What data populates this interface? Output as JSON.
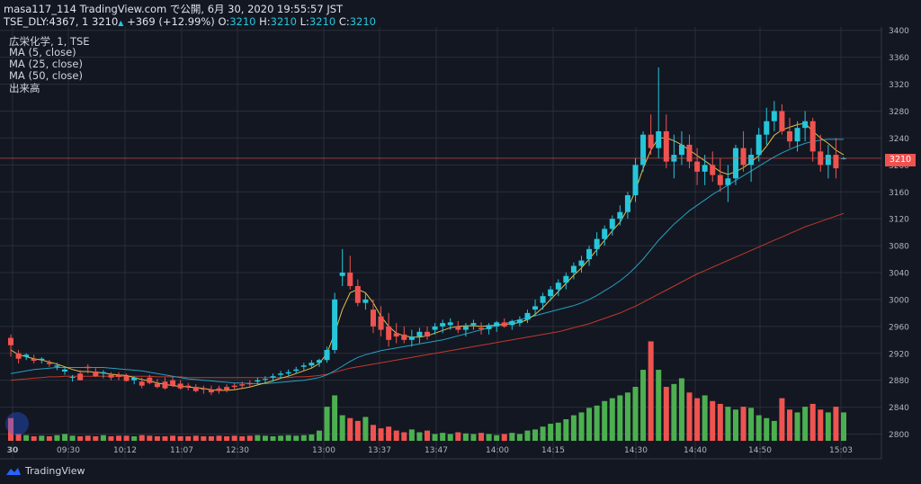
{
  "header": {
    "line1": "masa117_114 TradingView.com で公開, 6月 30, 2020 19:55:57 JST",
    "symbol": "TSE_DLY:4367, 1",
    "last": "3210",
    "change": "+369 (+12.99%)",
    "o_label": "O:",
    "o": "3210",
    "h_label": "H:",
    "h": "3210",
    "l_label": "L:",
    "l": "3210",
    "c_label": "C:",
    "c": "3210"
  },
  "legend": {
    "title": "広栄化学, 1, TSE",
    "ma5": "MA (5, close)",
    "ma25": "MA (25, close)",
    "ma50": "MA (50, close)",
    "volume": "出来高"
  },
  "brand": {
    "name": "TradingView"
  },
  "price_tag": "3210",
  "colors": {
    "background": "#131722",
    "up": "#26c6da",
    "down": "#ef5350",
    "vol_up": "#4caf50",
    "vol_down": "#ef5350",
    "ma5": "#e2c047",
    "ma25": "#26a0c0",
    "ma50": "#c0392b"
  },
  "chart_data": {
    "type": "candlestick",
    "title": "",
    "y_axis_ticks": [
      "3400",
      "3360",
      "3320",
      "3280",
      "3240",
      "3200",
      "3160",
      "3120",
      "3080",
      "3040",
      "3000",
      "2960",
      "2920",
      "2880",
      "2840",
      "2800"
    ],
    "x_axis_ticks": [
      "30",
      "09:30",
      "10:12",
      "11:07",
      "12:30",
      "13:00",
      "13:37",
      "13:47",
      "14:00",
      "14:15",
      "14:30",
      "14:40",
      "14:50",
      "15:03"
    ],
    "ylim": [
      2790,
      3405
    ],
    "last_price": 3210,
    "grid": true,
    "ohlc": [
      [
        2943,
        2948,
        2915,
        2932
      ],
      [
        2920,
        2925,
        2905,
        2912
      ],
      [
        2915,
        2920,
        2910,
        2918
      ],
      [
        2912,
        2918,
        2905,
        2909
      ],
      [
        2910,
        2914,
        2905,
        2912
      ],
      [
        2906,
        2910,
        2900,
        2904
      ],
      [
        2900,
        2906,
        2895,
        2902
      ],
      [
        2893,
        2900,
        2888,
        2896
      ],
      [
        2884,
        2888,
        2878,
        2885
      ],
      [
        2890,
        2895,
        2880,
        2880
      ],
      [
        2900,
        2904,
        2890,
        2898
      ],
      [
        2893,
        2898,
        2885,
        2886
      ],
      [
        2890,
        2895,
        2883,
        2892
      ],
      [
        2888,
        2892,
        2880,
        2884
      ],
      [
        2888,
        2892,
        2880,
        2885
      ],
      [
        2886,
        2890,
        2878,
        2879
      ],
      [
        2880,
        2886,
        2874,
        2884
      ],
      [
        2878,
        2884,
        2868,
        2872
      ],
      [
        2884,
        2888,
        2874,
        2876
      ],
      [
        2875,
        2882,
        2868,
        2870
      ],
      [
        2878,
        2884,
        2866,
        2868
      ],
      [
        2880,
        2885,
        2870,
        2872
      ],
      [
        2875,
        2880,
        2866,
        2868
      ],
      [
        2872,
        2876,
        2865,
        2870
      ],
      [
        2870,
        2874,
        2862,
        2864
      ],
      [
        2868,
        2872,
        2860,
        2866
      ],
      [
        2866,
        2872,
        2858,
        2862
      ],
      [
        2868,
        2872,
        2860,
        2864
      ],
      [
        2870,
        2874,
        2862,
        2866
      ],
      [
        2872,
        2876,
        2866,
        2870
      ],
      [
        2874,
        2878,
        2868,
        2872
      ],
      [
        2876,
        2880,
        2870,
        2874
      ],
      [
        2878,
        2884,
        2872,
        2880
      ],
      [
        2882,
        2886,
        2876,
        2882
      ],
      [
        2884,
        2890,
        2878,
        2886
      ],
      [
        2888,
        2894,
        2882,
        2890
      ],
      [
        2890,
        2896,
        2886,
        2892
      ],
      [
        2894,
        2900,
        2890,
        2896
      ],
      [
        2900,
        2906,
        2895,
        2902
      ],
      [
        2902,
        2910,
        2898,
        2906
      ],
      [
        2906,
        2912,
        2900,
        2910
      ],
      [
        2910,
        2930,
        2906,
        2925
      ],
      [
        2925,
        3010,
        2920,
        3000
      ],
      [
        3035,
        3075,
        3020,
        3040
      ],
      [
        3040,
        3065,
        3015,
        3020
      ],
      [
        3020,
        3030,
        2990,
        2995
      ],
      [
        2995,
        3010,
        2985,
        3000
      ],
      [
        2985,
        3000,
        2950,
        2960
      ],
      [
        2975,
        2990,
        2945,
        2955
      ],
      [
        2960,
        2980,
        2930,
        2940
      ],
      [
        2950,
        2965,
        2935,
        2945
      ],
      [
        2948,
        2960,
        2935,
        2940
      ],
      [
        2940,
        2955,
        2930,
        2945
      ],
      [
        2945,
        2958,
        2935,
        2952
      ],
      [
        2952,
        2960,
        2940,
        2945
      ],
      [
        2955,
        2965,
        2948,
        2960
      ],
      [
        2960,
        2970,
        2950,
        2965
      ],
      [
        2962,
        2972,
        2955,
        2966
      ],
      [
        2960,
        2968,
        2950,
        2955
      ],
      [
        2955,
        2965,
        2945,
        2960
      ],
      [
        2962,
        2970,
        2955,
        2965
      ],
      [
        2958,
        2966,
        2948,
        2956
      ],
      [
        2956,
        2965,
        2948,
        2962
      ],
      [
        2960,
        2968,
        2952,
        2966
      ],
      [
        2966,
        2972,
        2958,
        2960
      ],
      [
        2962,
        2970,
        2955,
        2968
      ],
      [
        2965,
        2975,
        2960,
        2970
      ],
      [
        2970,
        2985,
        2965,
        2980
      ],
      [
        2985,
        3000,
        2975,
        2990
      ],
      [
        2995,
        3010,
        2985,
        3005
      ],
      [
        3005,
        3020,
        2998,
        3015
      ],
      [
        3015,
        3030,
        3005,
        3025
      ],
      [
        3025,
        3040,
        3015,
        3035
      ],
      [
        3040,
        3055,
        3030,
        3050
      ],
      [
        3050,
        3065,
        3040,
        3058
      ],
      [
        3060,
        3080,
        3050,
        3075
      ],
      [
        3075,
        3100,
        3065,
        3090
      ],
      [
        3090,
        3110,
        3080,
        3105
      ],
      [
        3105,
        3125,
        3095,
        3120
      ],
      [
        3120,
        3140,
        3110,
        3130
      ],
      [
        3130,
        3160,
        3120,
        3155
      ],
      [
        3155,
        3210,
        3145,
        3200
      ],
      [
        3200,
        3250,
        3190,
        3245
      ],
      [
        3245,
        3275,
        3215,
        3225
      ],
      [
        3225,
        3345,
        3210,
        3250
      ],
      [
        3250,
        3275,
        3195,
        3205
      ],
      [
        3205,
        3245,
        3180,
        3215
      ],
      [
        3215,
        3250,
        3200,
        3230
      ],
      [
        3230,
        3245,
        3195,
        3205
      ],
      [
        3205,
        3225,
        3170,
        3190
      ],
      [
        3190,
        3215,
        3170,
        3200
      ],
      [
        3200,
        3220,
        3175,
        3185
      ],
      [
        3185,
        3210,
        3160,
        3170
      ],
      [
        3170,
        3200,
        3145,
        3180
      ],
      [
        3180,
        3230,
        3170,
        3225
      ],
      [
        3225,
        3250,
        3190,
        3200
      ],
      [
        3200,
        3225,
        3175,
        3215
      ],
      [
        3215,
        3255,
        3205,
        3245
      ],
      [
        3245,
        3285,
        3230,
        3265
      ],
      [
        3265,
        3295,
        3250,
        3280
      ],
      [
        3280,
        3290,
        3245,
        3250
      ],
      [
        3250,
        3270,
        3225,
        3235
      ],
      [
        3235,
        3265,
        3220,
        3255
      ],
      [
        3255,
        3280,
        3235,
        3265
      ],
      [
        3265,
        3270,
        3205,
        3220
      ],
      [
        3220,
        3245,
        3190,
        3200
      ],
      [
        3200,
        3230,
        3180,
        3215
      ],
      [
        3215,
        3240,
        3180,
        3195
      ],
      [
        3210,
        3212,
        3208,
        3210
      ]
    ],
    "ma5": [
      2925,
      2918,
      2915,
      2912,
      2910,
      2907,
      2904,
      2900,
      2896,
      2893,
      2893,
      2892,
      2891,
      2889,
      2888,
      2887,
      2884,
      2881,
      2879,
      2876,
      2874,
      2872,
      2871,
      2870,
      2869,
      2868,
      2866,
      2865,
      2865,
      2866,
      2868,
      2870,
      2873,
      2876,
      2879,
      2883,
      2886,
      2890,
      2894,
      2898,
      2905,
      2920,
      2950,
      2985,
      3010,
      3015,
      3010,
      2995,
      2975,
      2960,
      2950,
      2946,
      2944,
      2944,
      2946,
      2950,
      2954,
      2958,
      2960,
      2961,
      2961,
      2960,
      2961,
      2962,
      2963,
      2964,
      2966,
      2970,
      2978,
      2988,
      3000,
      3012,
      3024,
      3036,
      3047,
      3060,
      3074,
      3088,
      3102,
      3115,
      3135,
      3162,
      3195,
      3222,
      3240,
      3240,
      3236,
      3230,
      3222,
      3214,
      3206,
      3198,
      3190,
      3186,
      3190,
      3196,
      3204,
      3214,
      3228,
      3244,
      3252,
      3256,
      3260,
      3262,
      3250,
      3240,
      3232,
      3222,
      3215
    ],
    "ma25": [
      2890,
      2892,
      2894,
      2896,
      2897,
      2898,
      2899,
      2899,
      2899,
      2899,
      2899,
      2899,
      2899,
      2898,
      2897,
      2896,
      2895,
      2894,
      2892,
      2890,
      2888,
      2886,
      2884,
      2882,
      2881,
      2880,
      2879,
      2878,
      2877,
      2876,
      2876,
      2875,
      2875,
      2875,
      2876,
      2877,
      2878,
      2879,
      2880,
      2882,
      2884,
      2888,
      2894,
      2901,
      2908,
      2914,
      2918,
      2921,
      2924,
      2926,
      2928,
      2930,
      2932,
      2934,
      2936,
      2938,
      2940,
      2943,
      2946,
      2949,
      2952,
      2955,
      2958,
      2961,
      2964,
      2967,
      2970,
      2973,
      2976,
      2979,
      2982,
      2985,
      2988,
      2991,
      2995,
      3000,
      3006,
      3013,
      3020,
      3028,
      3037,
      3048,
      3060,
      3074,
      3088,
      3100,
      3112,
      3122,
      3132,
      3140,
      3148,
      3156,
      3163,
      3170,
      3177,
      3184,
      3191,
      3198,
      3205,
      3212,
      3218,
      3223,
      3228,
      3232,
      3235,
      3237,
      3238,
      3238,
      3238
    ],
    "ma50": [
      2880,
      2881,
      2882,
      2883,
      2884,
      2885,
      2885,
      2886,
      2886,
      2886,
      2886,
      2886,
      2886,
      2886,
      2886,
      2886,
      2886,
      2886,
      2886,
      2885,
      2885,
      2885,
      2885,
      2884,
      2884,
      2884,
      2884,
      2884,
      2884,
      2884,
      2884,
      2884,
      2884,
      2884,
      2884,
      2884,
      2884,
      2885,
      2885,
      2886,
      2887,
      2889,
      2892,
      2895,
      2898,
      2900,
      2902,
      2904,
      2906,
      2908,
      2910,
      2912,
      2914,
      2916,
      2918,
      2920,
      2922,
      2924,
      2926,
      2928,
      2930,
      2932,
      2934,
      2936,
      2938,
      2940,
      2942,
      2944,
      2946,
      2948,
      2950,
      2952,
      2955,
      2958,
      2961,
      2964,
      2968,
      2972,
      2976,
      2980,
      2985,
      2990,
      2996,
      3002,
      3008,
      3014,
      3020,
      3026,
      3032,
      3038,
      3043,
      3048,
      3053,
      3058,
      3063,
      3068,
      3073,
      3078,
      3083,
      3088,
      3093,
      3098,
      3103,
      3108,
      3112,
      3116,
      3120,
      3124,
      3128
    ],
    "volume": [
      40,
      12,
      10,
      8,
      9,
      8,
      10,
      12,
      9,
      8,
      9,
      8,
      10,
      8,
      9,
      9,
      8,
      10,
      9,
      8,
      8,
      9,
      8,
      8,
      9,
      8,
      8,
      9,
      8,
      9,
      8,
      9,
      10,
      9,
      8,
      9,
      10,
      9,
      10,
      11,
      18,
      60,
      80,
      45,
      40,
      35,
      42,
      28,
      22,
      25,
      18,
      15,
      20,
      15,
      18,
      12,
      14,
      12,
      15,
      13,
      12,
      14,
      12,
      10,
      12,
      14,
      12,
      18,
      20,
      25,
      30,
      32,
      38,
      45,
      50,
      58,
      62,
      70,
      75,
      80,
      85,
      95,
      125,
      175,
      125,
      95,
      100,
      110,
      85,
      75,
      80,
      70,
      65,
      60,
      55,
      60,
      58,
      45,
      40,
      35,
      75,
      55,
      50,
      60,
      65,
      55,
      50,
      60,
      50
    ],
    "volume_max": 190
  }
}
